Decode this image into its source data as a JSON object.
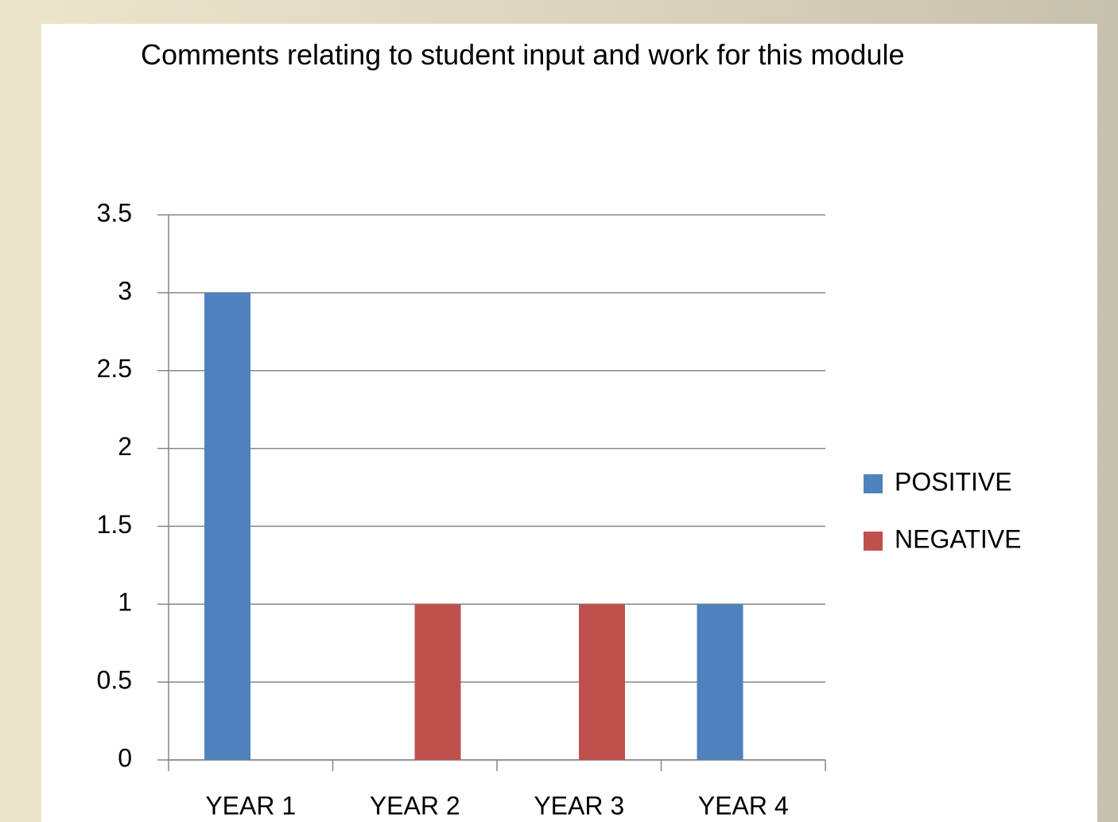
{
  "chart_data": {
    "type": "bar",
    "title": "Comments relating to student input and work for this module",
    "categories": [
      "YEAR 1",
      "YEAR 2",
      "YEAR 3",
      "YEAR 4"
    ],
    "series": [
      {
        "name": "POSITIVE",
        "color": "#4f81bd",
        "values": [
          3,
          0,
          0,
          1
        ]
      },
      {
        "name": "NEGATIVE",
        "color": "#c0504d",
        "values": [
          0,
          1,
          1,
          0
        ]
      }
    ],
    "ylim": [
      0,
      3.5
    ],
    "yticks": [
      0,
      0.5,
      1,
      1.5,
      2,
      2.5,
      3,
      3.5
    ],
    "grid": true,
    "legend": "right"
  }
}
